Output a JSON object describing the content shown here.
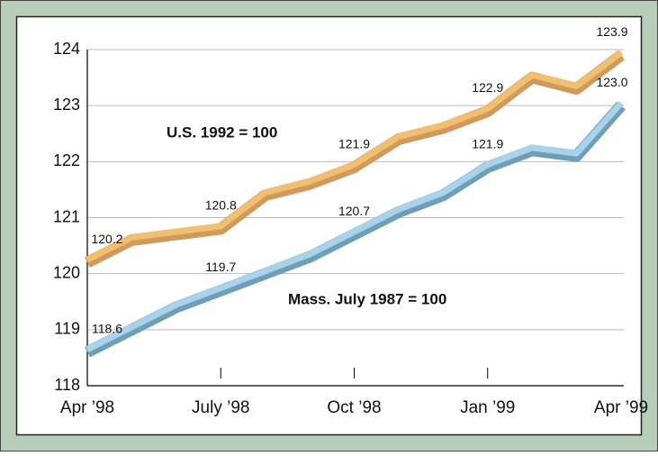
{
  "chart_data": {
    "type": "line",
    "categories": [
      "Apr ’98",
      null,
      null,
      "July ’98",
      null,
      null,
      "Oct ’98",
      null,
      null,
      "Jan ’99",
      null,
      null,
      "Apr ’99"
    ],
    "series": [
      {
        "name": "U.S. 1992 = 100",
        "color": "#f0bf72",
        "edge": "#d09a5a",
        "values": [
          120.2,
          120.6,
          120.7,
          120.8,
          121.4,
          121.6,
          121.9,
          122.4,
          122.6,
          122.9,
          123.5,
          123.3,
          123.9
        ],
        "value_labels": [
          "120.2",
          null,
          null,
          "120.8",
          null,
          null,
          "121.9",
          null,
          null,
          "122.9",
          null,
          null,
          "123.9"
        ]
      },
      {
        "name": "Mass. July 1987 = 100",
        "color": "#a9d3ea",
        "edge": "#6f9fb8",
        "values": [
          118.6,
          119.0,
          119.4,
          119.7,
          120.0,
          120.3,
          120.7,
          121.1,
          121.4,
          121.9,
          122.2,
          122.1,
          123.0
        ],
        "value_labels": [
          "118.6",
          null,
          null,
          "119.7",
          null,
          null,
          "120.7",
          null,
          null,
          "121.9",
          null,
          null,
          "123.0"
        ]
      }
    ],
    "ylim": [
      118,
      124
    ],
    "yticks": [
      118,
      119,
      120,
      121,
      122,
      123,
      124
    ],
    "grid": true
  }
}
